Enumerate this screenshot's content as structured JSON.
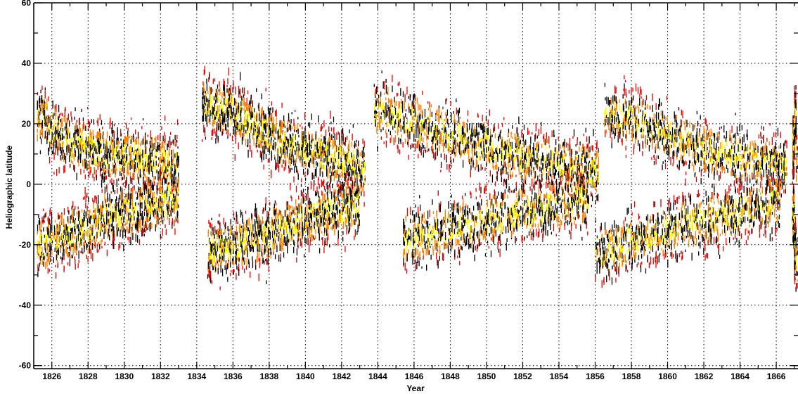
{
  "chart_data": {
    "type": "scatter",
    "title": "",
    "xlabel": "Year",
    "ylabel": "Heliographic latitude",
    "xlim": [
      1825,
      1867.2
    ],
    "ylim": [
      -61,
      60
    ],
    "x_ticks": [
      1826,
      1828,
      1830,
      1832,
      1834,
      1836,
      1838,
      1840,
      1842,
      1844,
      1846,
      1848,
      1850,
      1852,
      1854,
      1856,
      1858,
      1860,
      1862,
      1864,
      1866
    ],
    "y_ticks": [
      60,
      40,
      20,
      0,
      -20,
      -40,
      -60
    ],
    "grid": true,
    "marker": "short vertical dashes (sunspot latitude observations)",
    "color_scale": [
      "#000000",
      "#e60000",
      "#ff8000",
      "#ffff00"
    ],
    "series": [
      {
        "x": [
          1825.2,
          1825.8,
          1826.4,
          1827.0,
          1827.6,
          1828.2,
          1828.8,
          1829.4,
          1830.0,
          1830.6,
          1831.2,
          1831.8,
          1832.4
        ],
        "y": [
          22,
          18,
          15,
          13,
          12,
          11,
          10,
          9,
          9,
          8,
          8,
          7,
          6
        ]
      },
      {
        "x": [
          1825.2,
          1825.8,
          1826.4,
          1827.0,
          1827.6,
          1828.2,
          1828.8,
          1829.4,
          1830.0,
          1830.6,
          1831.2,
          1831.8,
          1832.4
        ],
        "y": [
          -20,
          -19,
          -17,
          -16,
          -15,
          -13,
          -11,
          -10,
          -9,
          -8,
          -7,
          -6,
          -5
        ]
      },
      {
        "x": [
          1834.3,
          1834.9,
          1835.5,
          1836.1,
          1836.7,
          1837.3,
          1837.9,
          1838.5,
          1839.1,
          1839.7,
          1840.3,
          1840.9,
          1841.5,
          1842.1,
          1842.7
        ],
        "y": [
          26,
          25,
          24,
          22,
          20,
          18,
          16,
          14,
          12,
          11,
          10,
          9,
          8,
          7,
          5
        ]
      },
      {
        "x": [
          1834.6,
          1835.2,
          1835.8,
          1836.4,
          1837.0,
          1837.6,
          1838.2,
          1838.8,
          1839.4,
          1840.0,
          1840.6,
          1841.2,
          1841.8,
          1842.4
        ],
        "y": [
          -22,
          -21,
          -20,
          -19,
          -18,
          -17,
          -15,
          -14,
          -12,
          -11,
          -10,
          -9,
          -8,
          -7
        ]
      },
      {
        "x": [
          1843.8,
          1844.6,
          1845.4,
          1846.2,
          1847.0,
          1847.8,
          1848.6,
          1849.4,
          1850.2,
          1851.0,
          1851.8,
          1852.6,
          1853.4,
          1854.2,
          1855.0,
          1855.6
        ],
        "y": [
          24,
          22,
          21,
          19,
          17,
          16,
          14,
          13,
          11,
          10,
          9,
          8,
          7,
          6,
          5,
          4
        ]
      },
      {
        "x": [
          1845.4,
          1846.2,
          1847.0,
          1847.8,
          1848.6,
          1849.4,
          1850.2,
          1851.0,
          1851.8,
          1852.6,
          1853.4,
          1854.2,
          1855.0
        ],
        "y": [
          -18,
          -17,
          -16,
          -14,
          -13,
          -12,
          -11,
          -10,
          -9,
          -8,
          -7,
          -6,
          -5
        ]
      },
      {
        "x": [
          1856.5,
          1857.3,
          1858.1,
          1858.9,
          1859.7,
          1860.5,
          1861.3,
          1862.1,
          1862.9,
          1863.7,
          1864.5,
          1865.3,
          1866.0
        ],
        "y": [
          24,
          22,
          20,
          18,
          16,
          14,
          12,
          11,
          10,
          9,
          8,
          7,
          6
        ]
      },
      {
        "x": [
          1856.0,
          1856.8,
          1857.6,
          1858.4,
          1859.2,
          1860.0,
          1860.8,
          1861.6,
          1862.4,
          1863.2,
          1864.0,
          1864.8,
          1865.6
        ],
        "y": [
          -22,
          -21,
          -19,
          -18,
          -16,
          -15,
          -13,
          -12,
          -11,
          -10,
          -8,
          -7,
          -6
        ]
      },
      {
        "x": [
          1866.9,
          1867.0,
          1867.1
        ],
        "y": [
          12,
          20,
          8
        ]
      },
      {
        "x": [
          1866.9,
          1867.0,
          1867.1
        ],
        "y": [
          -10,
          -22,
          -26
        ]
      }
    ]
  }
}
